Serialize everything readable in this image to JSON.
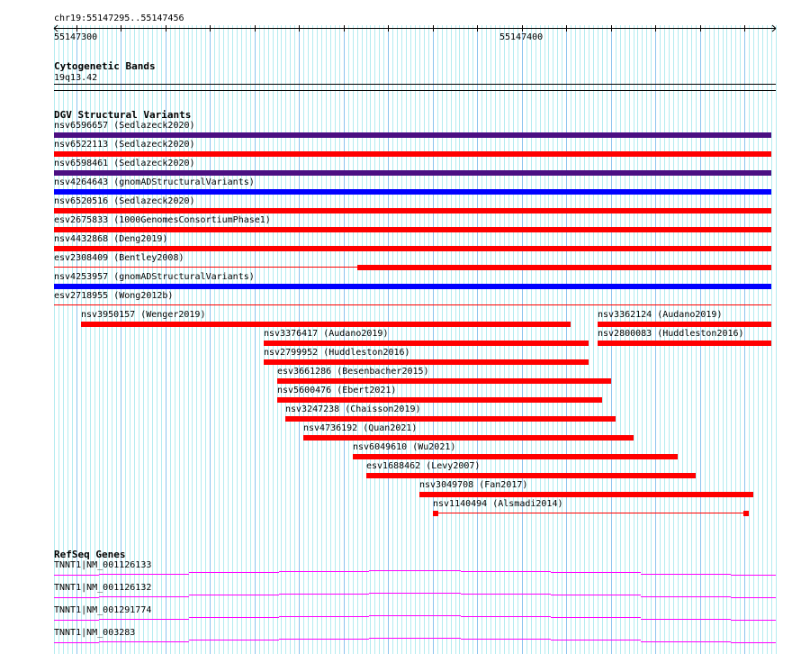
{
  "ruler": {
    "region": "chr19:55147295..55147456",
    "start": 55147295,
    "end": 55147456,
    "labels": [
      "55147300",
      "55147400"
    ]
  },
  "cytoband": {
    "title": "Cytogenetic Bands",
    "band": "19q13.42"
  },
  "dgv": {
    "title": "DGV Structural Variants",
    "colors": {
      "loss": "#ff0000",
      "gain": "#0000ff",
      "both": "#4b0f82"
    },
    "variants": [
      {
        "label": "nsv6596657 (Sedlazeck2020)",
        "start": 55147295,
        "end": 55147456,
        "type": "both"
      },
      {
        "label": "nsv6522113 (Sedlazeck2020)",
        "start": 55147295,
        "end": 55147456,
        "type": "loss"
      },
      {
        "label": "nsv6598461 (Sedlazeck2020)",
        "start": 55147295,
        "end": 55147456,
        "type": "both"
      },
      {
        "label": "nsv4264643 (gnomADStructuralVariants)",
        "start": 55147295,
        "end": 55147456,
        "type": "gain"
      },
      {
        "label": "nsv6520516 (Sedlazeck2020)",
        "start": 55147295,
        "end": 55147456,
        "type": "loss"
      },
      {
        "label": "esv2675833 (1000GenomesConsortiumPhase1)",
        "start": 55147295,
        "end": 55147456,
        "type": "loss"
      },
      {
        "label": "nsv4432868 (Deng2019)",
        "start": 55147295,
        "end": 55147456,
        "type": "loss"
      },
      {
        "label": "esv2308409 (Bentley2008)",
        "start": 55147363,
        "end": 55147456,
        "type": "loss",
        "thin_from": 55147295
      },
      {
        "label": "nsv4253957 (gnomADStructuralVariants)",
        "start": 55147295,
        "end": 55147456,
        "type": "gain"
      },
      {
        "label": "esv2718955 (Wong2012b)",
        "start": 55147295,
        "end": 55147456,
        "type": "loss",
        "thin": true
      },
      {
        "label": "nsv3950157 (Wenger2019)",
        "start": 55147301,
        "end": 55147411,
        "type": "loss"
      },
      {
        "label": "nsv3362124 (Audano2019)",
        "start": 55147417,
        "end": 55147456,
        "type": "loss"
      },
      {
        "label": "nsv3376417 (Audano2019)",
        "start": 55147342,
        "end": 55147415,
        "type": "loss"
      },
      {
        "label": "nsv2800083 (Huddleston2016)",
        "start": 55147417,
        "end": 55147456,
        "type": "loss"
      },
      {
        "label": "nsv2799952 (Huddleston2016)",
        "start": 55147342,
        "end": 55147415,
        "type": "loss"
      },
      {
        "label": "esv3661286 (Besenbacher2015)",
        "start": 55147345,
        "end": 55147420,
        "type": "loss"
      },
      {
        "label": "nsv5600476 (Ebert2021)",
        "start": 55147345,
        "end": 55147418,
        "type": "loss"
      },
      {
        "label": "nsv3247238 (Chaisson2019)",
        "start": 55147347,
        "end": 55147421,
        "type": "loss"
      },
      {
        "label": "nsv4736192 (Quan2021)",
        "start": 55147351,
        "end": 55147425,
        "type": "loss"
      },
      {
        "label": "nsv6049610 (Wu2021)",
        "start": 55147362,
        "end": 55147435,
        "type": "loss"
      },
      {
        "label": "esv1688462 (Levy2007)",
        "start": 55147365,
        "end": 55147439,
        "type": "loss"
      },
      {
        "label": "nsv3049708 (Fan2017)",
        "start": 55147377,
        "end": 55147452,
        "type": "loss"
      },
      {
        "label": "nsv1140494 (Alsmadi2014)",
        "start": 55147380,
        "end": 55147451,
        "type": "loss",
        "split": true
      }
    ]
  },
  "refseq": {
    "title": "RefSeq Genes",
    "color": "#ff00ff",
    "genes": [
      {
        "label": "TNNT1|NM_001126133"
      },
      {
        "label": "TNNT1|NM_001126132"
      },
      {
        "label": "TNNT1|NM_001291774"
      },
      {
        "label": "TNNT1|NM_003283"
      }
    ]
  }
}
